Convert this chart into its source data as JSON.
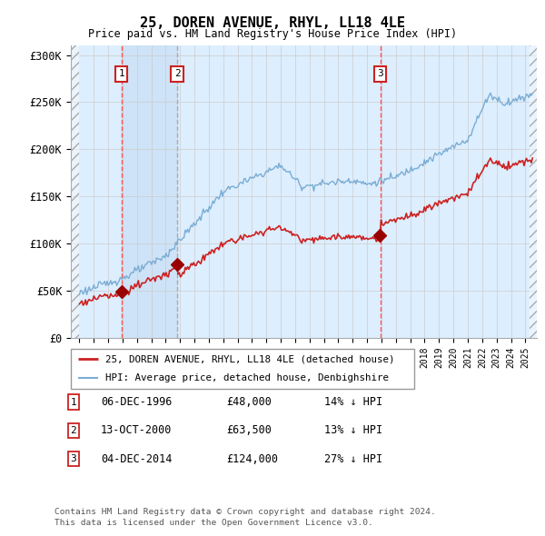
{
  "title": "25, DOREN AVENUE, RHYL, LL18 4LE",
  "subtitle": "Price paid vs. HM Land Registry's House Price Index (HPI)",
  "ylim": [
    0,
    310000
  ],
  "yticks": [
    0,
    50000,
    100000,
    150000,
    200000,
    250000,
    300000
  ],
  "ytick_labels": [
    "£0",
    "£50K",
    "£100K",
    "£150K",
    "£200K",
    "£250K",
    "£300K"
  ],
  "hpi_color": "#7aadd4",
  "price_color": "#cc2222",
  "marker_color": "#990000",
  "bg_color": "#ddeeff",
  "sales": [
    {
      "year": 1996.92,
      "price": 48000,
      "label": "1"
    },
    {
      "year": 2000.79,
      "price": 63500,
      "label": "2"
    },
    {
      "year": 2014.92,
      "price": 124000,
      "label": "3"
    }
  ],
  "sale_labels": [
    {
      "num": "1",
      "date": "06-DEC-1996",
      "price": "£48,000",
      "note": "14% ↓ HPI"
    },
    {
      "num": "2",
      "date": "13-OCT-2000",
      "price": "£63,500",
      "note": "13% ↓ HPI"
    },
    {
      "num": "3",
      "date": "04-DEC-2014",
      "price": "£124,000",
      "note": "27% ↓ HPI"
    }
  ],
  "legend_line1": "25, DOREN AVENUE, RHYL, LL18 4LE (detached house)",
  "legend_line2": "HPI: Average price, detached house, Denbighshire",
  "footer1": "Contains HM Land Registry data © Crown copyright and database right 2024.",
  "footer2": "This data is licensed under the Open Government Licence v3.0."
}
